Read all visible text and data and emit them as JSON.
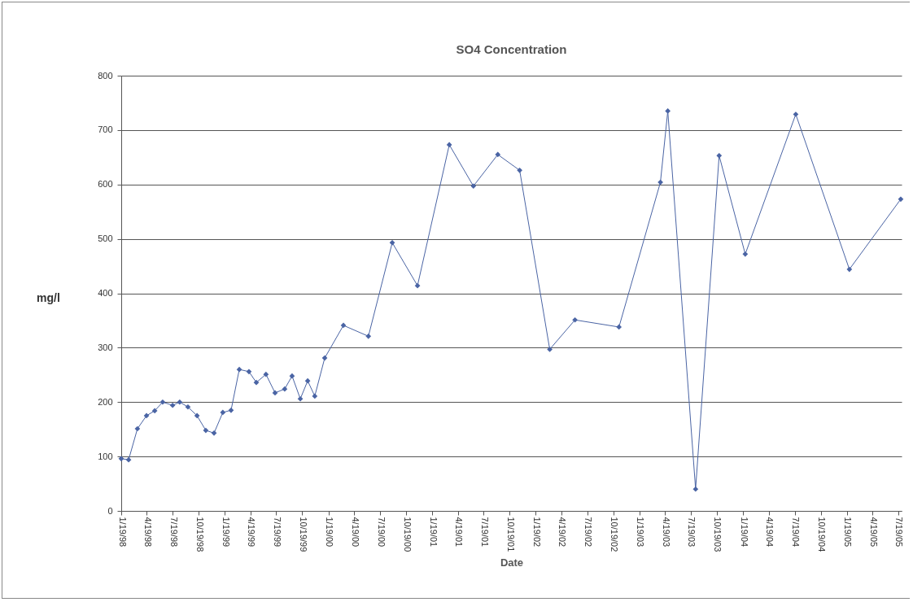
{
  "chart_data": {
    "type": "line",
    "title": "SO4 Concentration",
    "xlabel": "Date",
    "ylabel": "mg/l",
    "x": [
      "1998-01-19",
      "1998-02-14",
      "1998-03-17",
      "1998-04-18",
      "1998-05-17",
      "1998-06-14",
      "1998-07-19",
      "1998-08-13",
      "1998-09-11",
      "1998-10-13",
      "1998-11-13",
      "1998-12-12",
      "1999-01-12",
      "1999-02-10",
      "1999-03-11",
      "1999-04-14",
      "1999-05-10",
      "1999-06-13",
      "1999-07-15",
      "1999-08-18",
      "1999-09-13",
      "1999-10-12",
      "1999-11-07",
      "1999-12-02",
      "2000-01-06",
      "2000-03-12",
      "2000-06-08",
      "2000-08-31",
      "2000-11-28",
      "2001-03-20",
      "2001-06-13",
      "2001-09-07",
      "2001-11-23",
      "2002-03-09",
      "2002-06-06",
      "2002-11-08",
      "2003-04-03",
      "2003-04-29",
      "2003-08-05",
      "2003-10-27",
      "2004-01-27",
      "2004-07-23",
      "2005-01-28",
      "2005-07-28"
    ],
    "series": [
      {
        "color": "#4a64a4",
        "values": [
          96,
          94,
          151,
          175,
          184,
          200,
          194,
          200,
          191,
          175,
          148,
          143,
          181,
          185,
          260,
          256,
          236,
          251,
          217,
          224,
          248,
          206,
          239,
          211,
          281,
          341,
          321,
          493,
          414,
          673,
          597,
          655,
          626,
          297,
          351,
          338,
          604,
          735,
          40,
          653,
          472,
          729,
          444,
          573
        ]
      }
    ],
    "xlim": [
      "1998-01-19",
      "2005-07-31"
    ],
    "xticks": [
      {
        "value": "1998-01-19",
        "label": "1/19/98"
      },
      {
        "value": "1998-04-19",
        "label": "4/19/98"
      },
      {
        "value": "1998-07-19",
        "label": "7/19/98"
      },
      {
        "value": "1998-10-19",
        "label": "10/19/98"
      },
      {
        "value": "1999-01-19",
        "label": "1/19/99"
      },
      {
        "value": "1999-04-19",
        "label": "4/19/99"
      },
      {
        "value": "1999-07-19",
        "label": "7/19/99"
      },
      {
        "value": "1999-10-19",
        "label": "10/19/99"
      },
      {
        "value": "2000-01-19",
        "label": "1/19/00"
      },
      {
        "value": "2000-04-19",
        "label": "4/19/00"
      },
      {
        "value": "2000-07-19",
        "label": "7/19/00"
      },
      {
        "value": "2000-10-19",
        "label": "10/19/00"
      },
      {
        "value": "2001-01-19",
        "label": "1/19/01"
      },
      {
        "value": "2001-04-19",
        "label": "4/19/01"
      },
      {
        "value": "2001-07-19",
        "label": "7/19/01"
      },
      {
        "value": "2001-10-19",
        "label": "10/19/01"
      },
      {
        "value": "2002-01-19",
        "label": "1/19/02"
      },
      {
        "value": "2002-04-19",
        "label": "4/19/02"
      },
      {
        "value": "2002-07-19",
        "label": "7/19/02"
      },
      {
        "value": "2002-10-19",
        "label": "10/19/02"
      },
      {
        "value": "2003-01-19",
        "label": "1/19/03"
      },
      {
        "value": "2003-04-19",
        "label": "4/19/03"
      },
      {
        "value": "2003-07-19",
        "label": "7/19/03"
      },
      {
        "value": "2003-10-19",
        "label": "10/19/03"
      },
      {
        "value": "2004-01-19",
        "label": "1/19/04"
      },
      {
        "value": "2004-04-19",
        "label": "4/19/04"
      },
      {
        "value": "2004-07-19",
        "label": "7/19/04"
      },
      {
        "value": "2004-10-19",
        "label": "10/19/04"
      },
      {
        "value": "2005-01-19",
        "label": "1/19/05"
      },
      {
        "value": "2005-04-19",
        "label": "4/19/05"
      },
      {
        "value": "2005-07-19",
        "label": "7/19/05"
      }
    ],
    "ylim": [
      0,
      800
    ],
    "yticks": [
      0,
      100,
      200,
      300,
      400,
      500,
      600,
      700,
      800
    ],
    "grid": "y",
    "marker": "diamond",
    "line_style": "solid"
  }
}
